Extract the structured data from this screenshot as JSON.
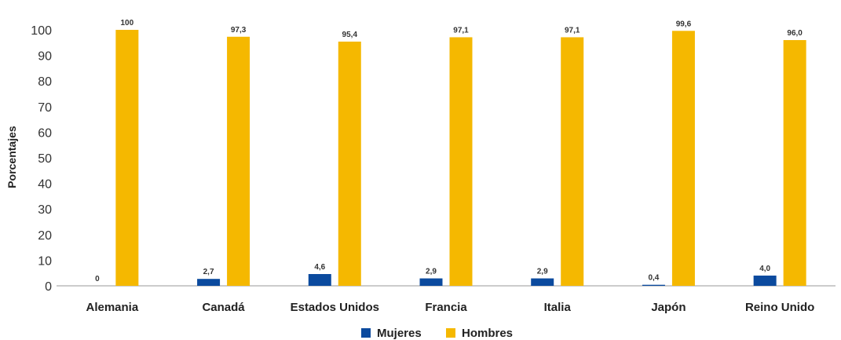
{
  "chart_data": {
    "type": "bar",
    "categories": [
      "Alemania",
      "Canadá",
      "Estados Unidos",
      "Francia",
      "Italia",
      "Japón",
      "Reino Unido"
    ],
    "series": [
      {
        "name": "Mujeres",
        "color": "#0b4a9e",
        "values": [
          0,
          2.7,
          4.6,
          2.9,
          2.9,
          0.4,
          4.0
        ],
        "labels": [
          "0",
          "2,7",
          "4,6",
          "2,9",
          "2,9",
          "0,4",
          "4,0"
        ]
      },
      {
        "name": "Hombres",
        "color": "#f5b800",
        "values": [
          100,
          97.3,
          95.4,
          97.1,
          97.1,
          99.6,
          96.0
        ],
        "labels": [
          "100",
          "97,3",
          "95,4",
          "97,1",
          "97,1",
          "99,6",
          "96,0"
        ]
      }
    ],
    "ylabel": "Porcentajes",
    "ylim": [
      0,
      100
    ],
    "yticks": [
      0,
      10,
      20,
      30,
      40,
      50,
      60,
      70,
      80,
      90,
      100
    ],
    "grid": false,
    "legend": "bottom-center"
  }
}
